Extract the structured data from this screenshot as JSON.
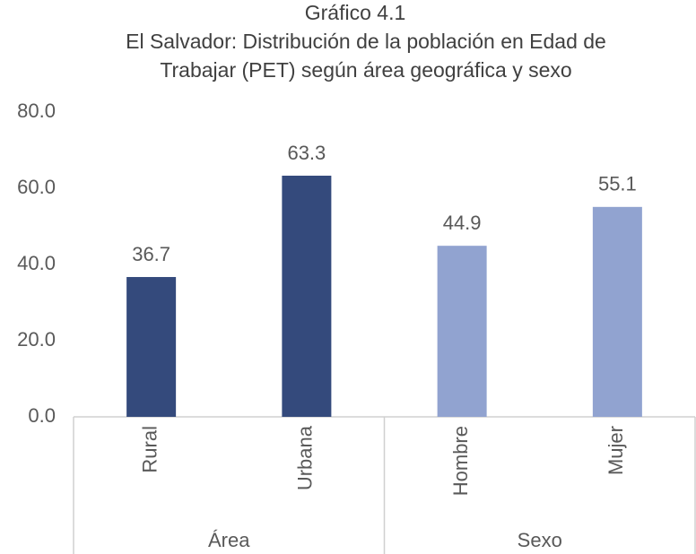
{
  "chart_data": {
    "type": "bar",
    "title": [
      "Gráfico 4.1",
      "El Salvador: Distribución de la población en Edad de",
      "Trabajar (PET) según área geográfica y sexo"
    ],
    "groups": [
      {
        "name": "Área",
        "categories": [
          "Rural",
          "Urbana"
        ],
        "values": [
          36.7,
          63.3
        ],
        "color": "#344a7c"
      },
      {
        "name": "Sexo",
        "categories": [
          "Hombre",
          "Mujer"
        ],
        "values": [
          44.9,
          55.1
        ],
        "color": "#91a3d0"
      }
    ],
    "ylim": [
      0,
      80
    ],
    "yticks": [
      {
        "value": 0,
        "label": "0.0"
      },
      {
        "value": 20,
        "label": "20.0"
      },
      {
        "value": 40,
        "label": "40.0"
      },
      {
        "value": 60,
        "label": "60.0"
      },
      {
        "value": 80,
        "label": "80.0"
      }
    ],
    "grid": false
  }
}
